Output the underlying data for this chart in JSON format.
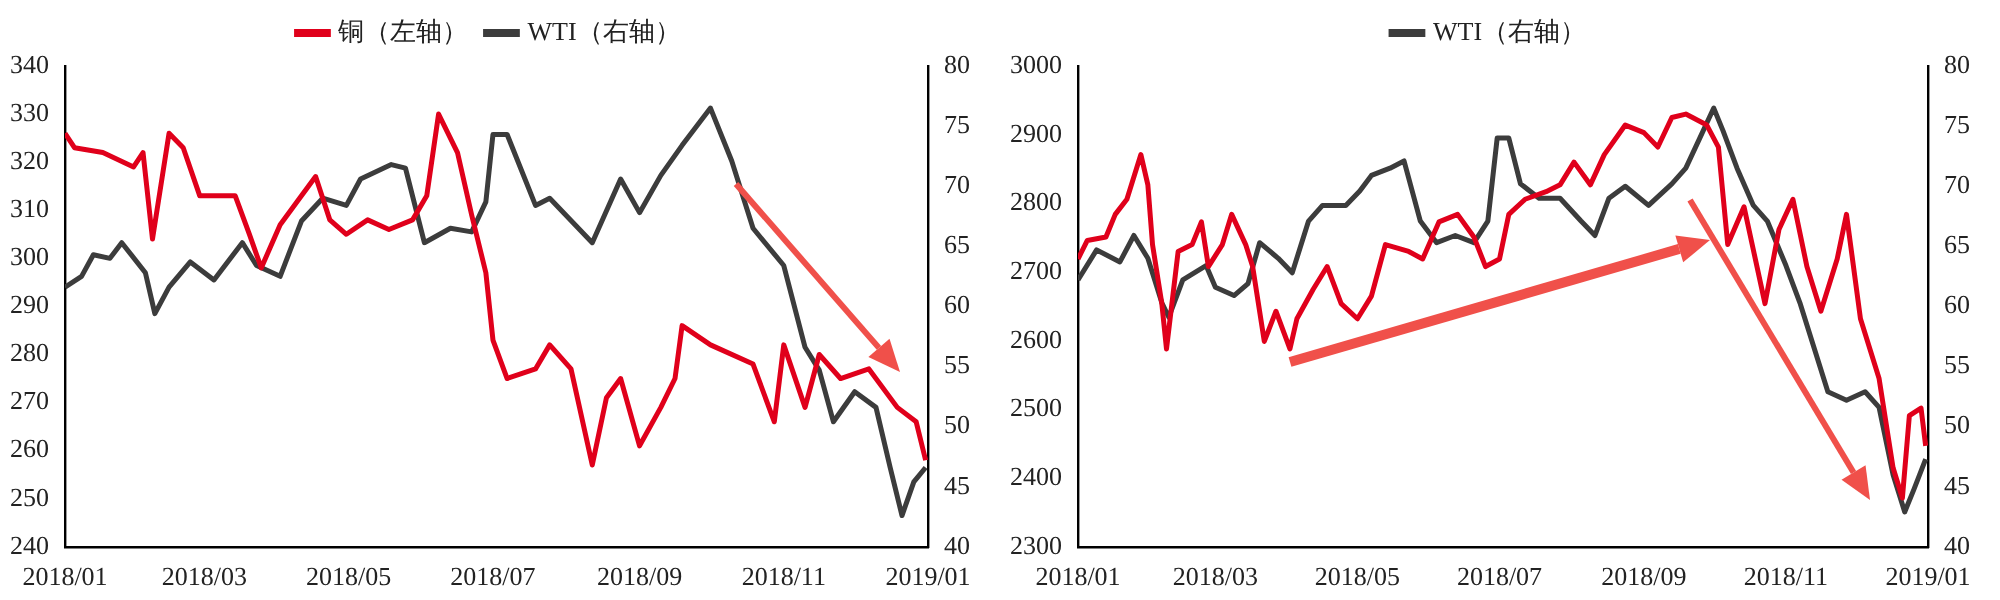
{
  "chart_data": [
    {
      "type": "line",
      "legend": "top",
      "grid": false,
      "marker": "none",
      "line_style": "solid",
      "xlim": [
        "2018-01-01",
        "2019-01-01"
      ],
      "xticks": [
        {
          "value": "2018-01-01",
          "label": "2018/01"
        },
        {
          "value": "2018-03-01",
          "label": "2018/03"
        },
        {
          "value": "2018-05-01",
          "label": "2018/05"
        },
        {
          "value": "2018-07-01",
          "label": "2018/07"
        },
        {
          "value": "2018-09-01",
          "label": "2018/09"
        },
        {
          "value": "2018-11-01",
          "label": "2018/11"
        },
        {
          "value": "2019-01-01",
          "label": "2019/01"
        }
      ],
      "ylim": [
        240,
        340
      ],
      "yticks": [
        240,
        250,
        260,
        270,
        280,
        290,
        300,
        310,
        320,
        330,
        340
      ],
      "y2lim": [
        40,
        80
      ],
      "y2ticks": [
        40,
        45,
        50,
        55,
        60,
        65,
        70,
        75,
        80
      ],
      "series": [
        {
          "name": "铜（左轴）",
          "color": "#e0001b",
          "x": [
            "2018-01-01",
            "2018-01-05",
            "2018-01-17",
            "2018-01-30",
            "2018-02-03",
            "2018-02-07",
            "2018-02-14",
            "2018-02-20",
            "2018-02-27",
            "2018-03-08",
            "2018-03-14",
            "2018-03-20",
            "2018-03-25",
            "2018-04-02",
            "2018-04-11",
            "2018-04-17",
            "2018-04-23",
            "2018-04-30",
            "2018-05-09",
            "2018-05-18",
            "2018-05-28",
            "2018-06-03",
            "2018-06-08",
            "2018-06-16",
            "2018-06-22",
            "2018-06-28",
            "2018-07-01",
            "2018-07-07",
            "2018-07-19",
            "2018-07-25",
            "2018-08-03",
            "2018-08-12",
            "2018-08-18",
            "2018-08-24",
            "2018-09-01",
            "2018-09-10",
            "2018-09-16",
            "2018-09-19",
            "2018-10-01",
            "2018-10-19",
            "2018-10-28",
            "2018-11-01",
            "2018-11-10",
            "2018-11-16",
            "2018-11-25",
            "2018-12-07",
            "2018-12-19",
            "2018-12-27",
            "2018-12-31"
          ],
          "values": [
            326,
            323,
            322,
            319,
            322,
            304,
            326,
            323,
            313,
            313,
            313,
            305,
            298,
            307,
            313,
            317,
            308,
            305,
            308,
            306,
            308,
            313,
            330,
            322,
            309,
            297,
            283,
            275,
            277,
            282,
            277,
            257,
            271,
            275,
            261,
            269,
            275,
            286,
            282,
            278,
            266,
            282,
            269,
            280,
            275,
            277,
            269,
            266,
            258
          ]
        },
        {
          "name": "WTI（右轴）",
          "color": "#3c3c3c",
          "axis": "y2",
          "x": [
            "2018-01-01",
            "2018-01-08",
            "2018-01-13",
            "2018-01-20",
            "2018-01-25",
            "2018-02-04",
            "2018-02-08",
            "2018-02-14",
            "2018-02-23",
            "2018-03-05",
            "2018-03-17",
            "2018-03-23",
            "2018-04-02",
            "2018-04-11",
            "2018-04-20",
            "2018-04-30",
            "2018-05-06",
            "2018-05-19",
            "2018-05-25",
            "2018-06-02",
            "2018-06-13",
            "2018-06-22",
            "2018-06-28",
            "2018-07-01",
            "2018-07-07",
            "2018-07-19",
            "2018-07-25",
            "2018-08-12",
            "2018-08-24",
            "2018-09-01",
            "2018-09-10",
            "2018-09-19",
            "2018-10-01",
            "2018-10-10",
            "2018-10-19",
            "2018-11-01",
            "2018-11-10",
            "2018-11-16",
            "2018-11-22",
            "2018-12-01",
            "2018-12-10",
            "2018-12-16",
            "2018-12-21",
            "2018-12-26",
            "2018-12-31"
          ],
          "values": [
            61.6,
            62.5,
            64.3,
            64,
            65.3,
            62.8,
            59.4,
            61.6,
            63.7,
            62.2,
            65.3,
            63.4,
            62.5,
            67.1,
            69,
            68.4,
            70.6,
            71.8,
            71.5,
            65.3,
            66.5,
            66.2,
            68.7,
            74.3,
            74.3,
            68.4,
            69,
            65.3,
            70.6,
            67.8,
            70.9,
            73.4,
            76.5,
            72.1,
            66.5,
            63.4,
            56.6,
            54.7,
            50.4,
            52.9,
            51.6,
            46.6,
            42.6,
            45.4,
            46.6
          ]
        }
      ]
    },
    {
      "type": "line",
      "legend": "top",
      "grid": false,
      "marker": "none",
      "line_style": "solid",
      "xlim": [
        "2018-01-01",
        "2019-01-01"
      ],
      "xticks": [
        {
          "value": "2018-01-01",
          "label": "2018/01"
        },
        {
          "value": "2018-03-01",
          "label": "2018/03"
        },
        {
          "value": "2018-05-01",
          "label": "2018/05"
        },
        {
          "value": "2018-07-01",
          "label": "2018/07"
        },
        {
          "value": "2018-09-01",
          "label": "2018/09"
        },
        {
          "value": "2018-11-01",
          "label": "2018/11"
        },
        {
          "value": "2019-01-01",
          "label": "2019/01"
        }
      ],
      "ylim": [
        2300,
        3000
      ],
      "yticks": [
        2300,
        2400,
        2500,
        2600,
        2700,
        2800,
        2900,
        3000
      ],
      "y2lim": [
        40,
        80
      ],
      "y2ticks": [
        40,
        45,
        50,
        55,
        60,
        65,
        70,
        75,
        80
      ],
      "series": [
        {
          "color": "#e0001b",
          "x": [
            "2018-01-01",
            "2018-01-05",
            "2018-01-13",
            "2018-01-17",
            "2018-01-22",
            "2018-01-28",
            "2018-01-31",
            "2018-02-02",
            "2018-02-06",
            "2018-02-08",
            "2018-02-13",
            "2018-02-19",
            "2018-02-23",
            "2018-02-26",
            "2018-03-04",
            "2018-03-08",
            "2018-03-14",
            "2018-03-17",
            "2018-03-22",
            "2018-03-27",
            "2018-04-02",
            "2018-04-05",
            "2018-04-12",
            "2018-04-18",
            "2018-04-24",
            "2018-05-01",
            "2018-05-07",
            "2018-05-13",
            "2018-05-23",
            "2018-05-29",
            "2018-06-05",
            "2018-06-13",
            "2018-06-20",
            "2018-06-25",
            "2018-07-01",
            "2018-07-05",
            "2018-07-12",
            "2018-07-21",
            "2018-07-27",
            "2018-08-02",
            "2018-08-09",
            "2018-08-15",
            "2018-08-24",
            "2018-09-01",
            "2018-09-07",
            "2018-09-13",
            "2018-09-19",
            "2018-09-28",
            "2018-10-03",
            "2018-10-07",
            "2018-10-14",
            "2018-10-23",
            "2018-10-29",
            "2018-11-04",
            "2018-11-10",
            "2018-11-16",
            "2018-11-23",
            "2018-11-27",
            "2018-12-03",
            "2018-12-11",
            "2018-12-17",
            "2018-12-21",
            "2018-12-24",
            "2018-12-29",
            "2018-12-31"
          ],
          "values": [
            2719,
            2746,
            2751,
            2784,
            2806,
            2871,
            2827,
            2740,
            2654,
            2588,
            2730,
            2740,
            2773,
            2708,
            2740,
            2784,
            2740,
            2708,
            2599,
            2643,
            2588,
            2632,
            2675,
            2708,
            2654,
            2632,
            2665,
            2740,
            2730,
            2719,
            2773,
            2784,
            2751,
            2708,
            2719,
            2784,
            2806,
            2817,
            2827,
            2860,
            2827,
            2871,
            2914,
            2903,
            2882,
            2925,
            2930,
            2914,
            2882,
            2740,
            2795,
            2654,
            2762,
            2806,
            2708,
            2643,
            2719,
            2784,
            2632,
            2545,
            2415,
            2371,
            2491,
            2502,
            2447
          ]
        },
        {
          "name": "WTI（右轴）",
          "color": "#3c3c3c",
          "axis": "y2",
          "x": [
            "2018-01-01",
            "2018-01-09",
            "2018-01-19",
            "2018-01-25",
            "2018-01-31",
            "2018-02-06",
            "2018-02-09",
            "2018-02-15",
            "2018-02-25",
            "2018-03-01",
            "2018-03-09",
            "2018-03-15",
            "2018-03-20",
            "2018-03-28",
            "2018-04-03",
            "2018-04-10",
            "2018-04-16",
            "2018-04-26",
            "2018-05-02",
            "2018-05-07",
            "2018-05-15",
            "2018-05-21",
            "2018-05-28",
            "2018-06-04",
            "2018-06-12",
            "2018-06-20",
            "2018-06-26",
            "2018-06-30",
            "2018-07-05",
            "2018-07-10",
            "2018-07-18",
            "2018-07-27",
            "2018-08-05",
            "2018-08-11",
            "2018-08-17",
            "2018-08-24",
            "2018-09-03",
            "2018-09-13",
            "2018-09-19",
            "2018-09-25",
            "2018-10-01",
            "2018-10-05",
            "2018-10-11",
            "2018-10-18",
            "2018-10-24",
            "2018-11-01",
            "2018-11-07",
            "2018-11-13",
            "2018-11-19",
            "2018-11-27",
            "2018-12-05",
            "2018-12-11",
            "2018-12-17",
            "2018-12-22",
            "2018-12-26",
            "2018-12-31"
          ],
          "values": [
            62.2,
            64.7,
            63.7,
            65.9,
            64,
            60.3,
            59.1,
            62.2,
            63.4,
            61.6,
            60.9,
            61.9,
            65.3,
            64,
            62.8,
            67.1,
            68.4,
            68.4,
            69.6,
            70.9,
            71.5,
            72.1,
            67.1,
            65.3,
            65.9,
            65.3,
            67.1,
            74,
            74,
            70.2,
            69,
            69,
            67.1,
            65.9,
            69,
            70,
            68.4,
            70.2,
            71.5,
            74,
            76.5,
            74.6,
            71.5,
            68.4,
            67.1,
            63.4,
            60.3,
            56.6,
            52.9,
            52.2,
            52.9,
            51.6,
            46,
            42.9,
            44.8,
            47.3
          ]
        }
      ]
    }
  ]
}
